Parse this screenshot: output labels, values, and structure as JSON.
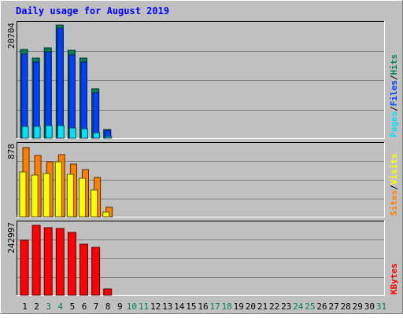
{
  "window": {
    "title": "Daily usage for August 2019"
  },
  "colors": {
    "background": "#c0c0c0",
    "plot_background": "#c0c0c0",
    "title_text": "#0000ff",
    "hits": "#00805c",
    "files": "#0040ff",
    "pages": "#00e0ff",
    "visits": "#ffff00",
    "sites": "#ff8000",
    "kbytes": "#ff0000",
    "weekend_day_text": "#00805c",
    "weekday_text": "#000000"
  },
  "chart_data": [
    {
      "type": "bar",
      "title": "Daily usage for August 2019",
      "categories": [
        "1",
        "2",
        "3",
        "4",
        "5",
        "6",
        "7",
        "8",
        "9",
        "10",
        "11",
        "12",
        "13",
        "14",
        "15",
        "16",
        "17",
        "18",
        "19",
        "20",
        "21",
        "22",
        "23",
        "24",
        "25",
        "26",
        "27",
        "28",
        "29",
        "30",
        "31"
      ],
      "weekend_days": [
        "3",
        "4",
        "10",
        "11",
        "17",
        "18",
        "24",
        "25",
        "31"
      ],
      "y_max_label": "20704",
      "ylim": [
        0,
        20704
      ],
      "grid": true,
      "legend": [
        "Pages",
        "Files",
        "Hits"
      ],
      "legend_separator": "/",
      "series": [
        {
          "name": "Hits",
          "color_key": "hits",
          "values": [
            16200,
            14700,
            16500,
            20704,
            16100,
            14600,
            9000,
            1600,
            0,
            0,
            0,
            0,
            0,
            0,
            0,
            0,
            0,
            0,
            0,
            0,
            0,
            0,
            0,
            0,
            0,
            0,
            0,
            0,
            0,
            0,
            0
          ]
        },
        {
          "name": "Files",
          "color_key": "files",
          "values": [
            15400,
            14000,
            15800,
            20100,
            15300,
            13900,
            8400,
            1400,
            0,
            0,
            0,
            0,
            0,
            0,
            0,
            0,
            0,
            0,
            0,
            0,
            0,
            0,
            0,
            0,
            0,
            0,
            0,
            0,
            0,
            0,
            0
          ]
        },
        {
          "name": "Pages",
          "color_key": "pages",
          "values": [
            2100,
            2200,
            2300,
            2300,
            1900,
            1700,
            1000,
            200,
            0,
            0,
            0,
            0,
            0,
            0,
            0,
            0,
            0,
            0,
            0,
            0,
            0,
            0,
            0,
            0,
            0,
            0,
            0,
            0,
            0,
            0,
            0
          ]
        }
      ]
    },
    {
      "type": "bar",
      "y_max_label": "878",
      "ylim": [
        0,
        878
      ],
      "grid": true,
      "legend": [
        "Sites",
        "Visits"
      ],
      "legend_separator": "/",
      "series": [
        {
          "name": "Sites",
          "color_key": "sites",
          "values": [
            860,
            757,
            684,
            770,
            658,
            581,
            486,
            114,
            0,
            0,
            0,
            0,
            0,
            0,
            0,
            0,
            0,
            0,
            0,
            0,
            0,
            0,
            0,
            0,
            0,
            0,
            0,
            0,
            0,
            0,
            0
          ]
        },
        {
          "name": "Visits",
          "color_key": "visits",
          "values": [
            553,
            513,
            533,
            684,
            523,
            476,
            327,
            57,
            0,
            0,
            0,
            0,
            0,
            0,
            0,
            0,
            0,
            0,
            0,
            0,
            0,
            0,
            0,
            0,
            0,
            0,
            0,
            0,
            0,
            0,
            0
          ]
        }
      ]
    },
    {
      "type": "bar",
      "y_max_label": "242997",
      "ylim": [
        0,
        242997
      ],
      "grid": true,
      "legend": [
        "KBytes"
      ],
      "series": [
        {
          "name": "KBytes",
          "color_key": "kbytes",
          "values": [
            188000,
            240000,
            233000,
            230000,
            215000,
            175000,
            165000,
            22000,
            0,
            0,
            0,
            0,
            0,
            0,
            0,
            0,
            0,
            0,
            0,
            0,
            0,
            0,
            0,
            0,
            0,
            0,
            0,
            0,
            0,
            0,
            0
          ]
        }
      ]
    }
  ]
}
